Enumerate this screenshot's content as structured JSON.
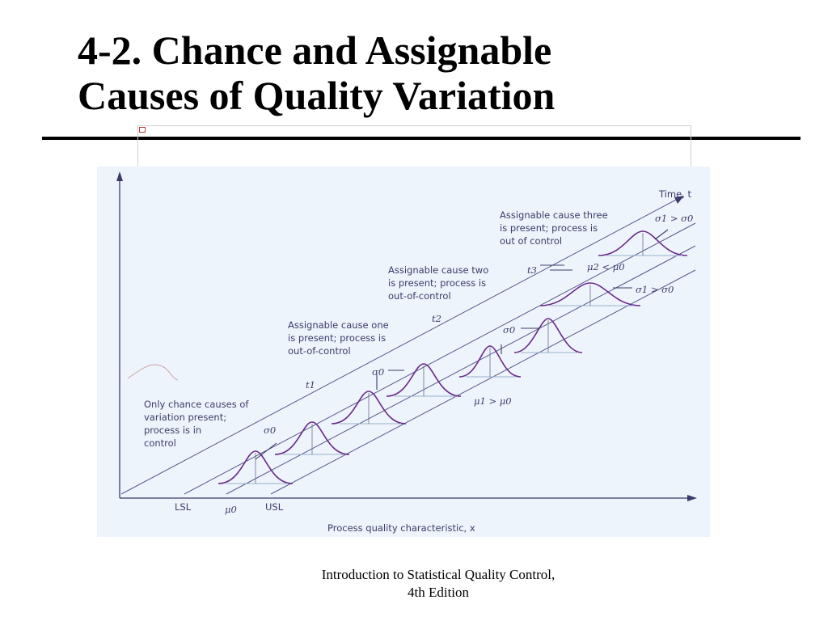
{
  "slide": {
    "title_line1": "4-2. Chance and Assignable",
    "title_line2": "Causes of Quality Variation"
  },
  "figure": {
    "axis_x_label": "Process quality characteristic, x",
    "axis_time_label": "Time, t",
    "spec_labels": {
      "lsl": "LSL",
      "usl": "USL",
      "mu0": "μ0"
    },
    "time_marks": {
      "t1": "t1",
      "t2": "t2",
      "t3": "t3"
    },
    "annotations": {
      "chance": [
        "Only chance causes of",
        "variation present;",
        "process is in",
        "control"
      ],
      "cause_one": [
        "Assignable cause one",
        "is present; process is",
        "out-of-control"
      ],
      "cause_two": [
        "Assignable cause two",
        "is present; process is",
        "out-of-control"
      ],
      "cause_three": [
        "Assignable cause three",
        "is present; process is",
        "out of control"
      ]
    },
    "math_labels": {
      "sigma0_a": "σ0",
      "sigma0_b": "σ0",
      "sigma0_c": "σ0",
      "mu1_gt_mu0": "μ1 > μ0",
      "mu2_lt_mu0": "μ2 < μ0",
      "sigma1_gt_sigma0_a": "σ1 > σ0",
      "sigma1_gt_sigma0_b": "σ1 > σ0"
    },
    "colors": {
      "ink": "#3b3b6b",
      "curve": "#6b2a8a",
      "background": "#eef4fb"
    }
  },
  "footer": {
    "line1": "Introduction to Statistical Quality Control,",
    "line2": "4th Edition"
  }
}
